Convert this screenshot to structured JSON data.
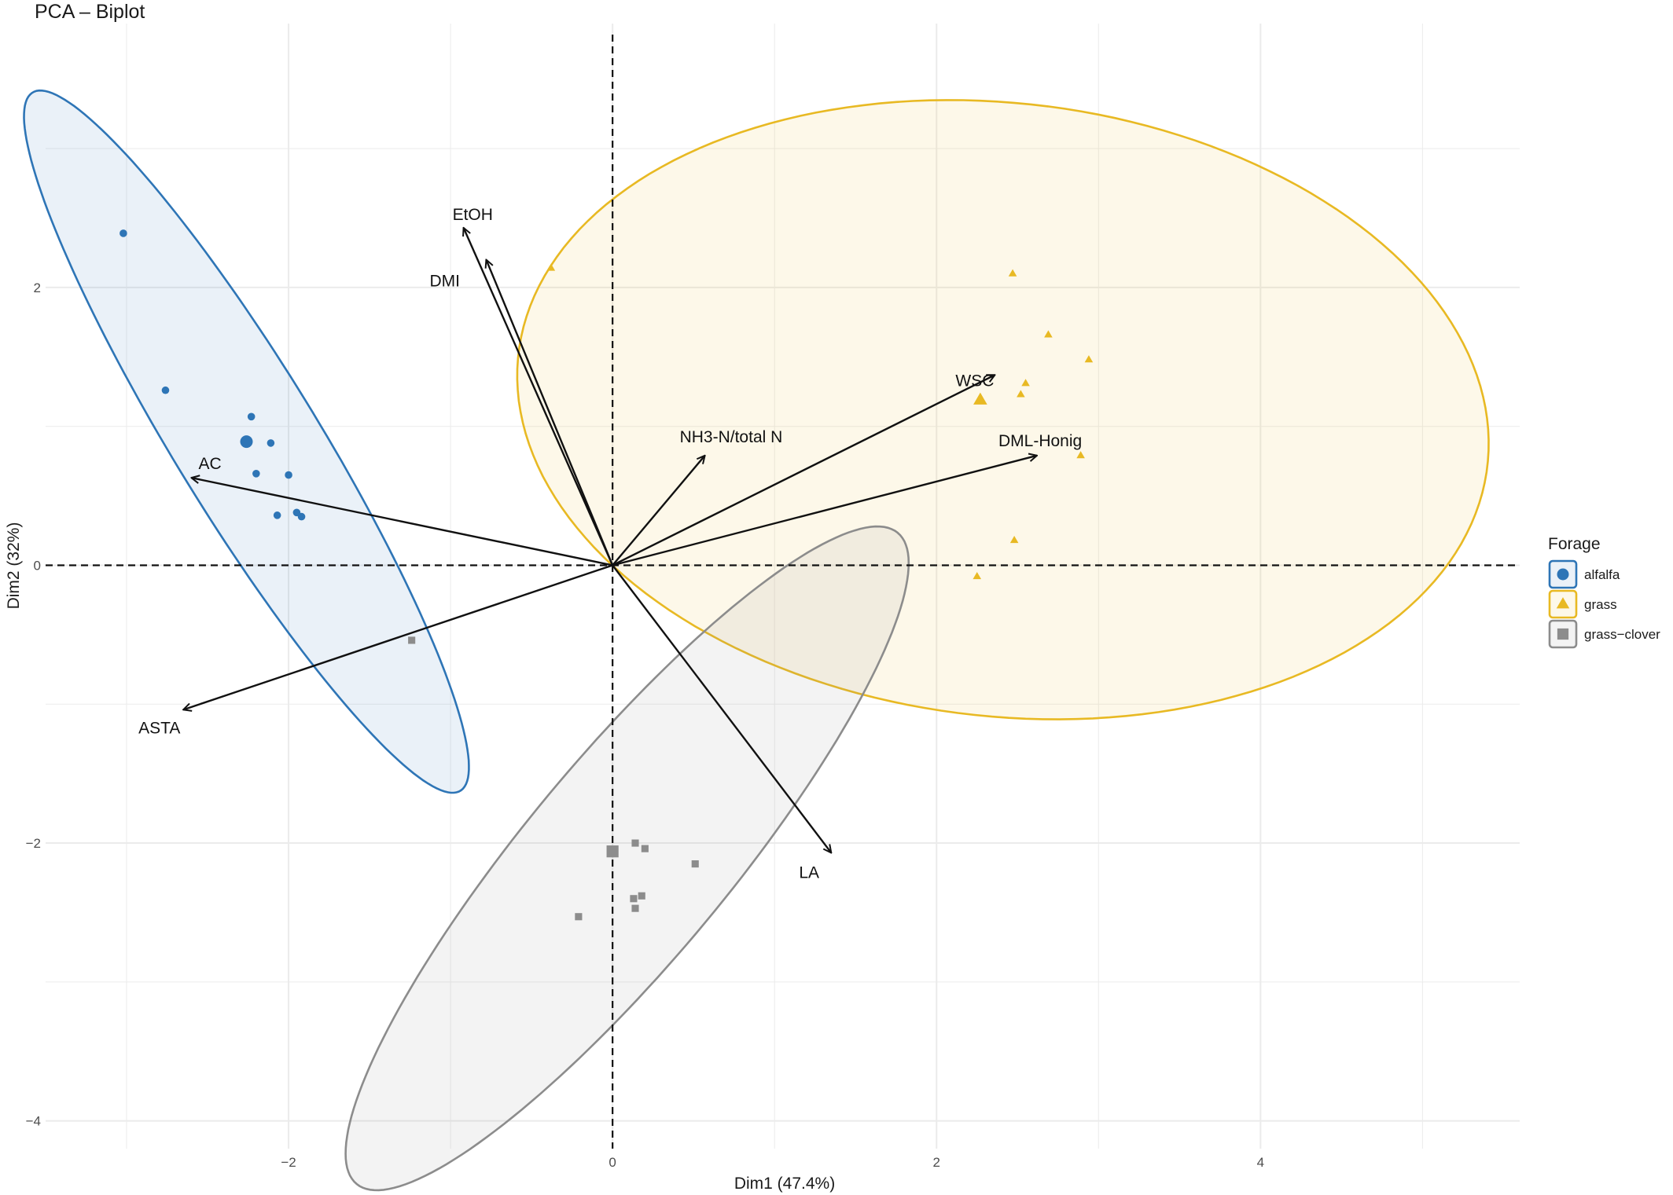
{
  "chart_data": {
    "type": "scatter",
    "title": "PCA – Biplot",
    "xlabel": "Dim1 (47.4%)",
    "ylabel": "Dim2 (32%)",
    "xlim": [
      -3.5,
      5.6
    ],
    "ylim": [
      -4.2,
      3.9
    ],
    "x_ticks": [
      -2,
      0,
      2,
      4
    ],
    "y_ticks": [
      -4,
      -2,
      0,
      2
    ],
    "x_tick_labels": [
      "−2",
      "0",
      "2",
      "4"
    ],
    "y_tick_labels": [
      "−4",
      "−2",
      "0",
      "2"
    ],
    "grid": true,
    "reference_lines": {
      "x": 0,
      "y": 0,
      "style": "dashed"
    },
    "legend": {
      "title": "Forage",
      "placement": "right",
      "entries": [
        "alfalfa",
        "grass",
        "grass−clover"
      ]
    },
    "series": [
      {
        "name": "alfalfa",
        "color": "#2E75B6",
        "shape": "circle",
        "points": [
          [
            -3.02,
            2.39
          ],
          [
            -2.76,
            1.26
          ],
          [
            -2.23,
            1.07
          ],
          [
            -2.11,
            0.88
          ],
          [
            -2.2,
            0.66
          ],
          [
            -2.0,
            0.65
          ],
          [
            -1.95,
            0.38
          ],
          [
            -1.92,
            0.35
          ],
          [
            -2.07,
            0.36
          ]
        ],
        "centroid": [
          -2.26,
          0.89
        ],
        "ellipse": {
          "center": [
            -2.26,
            0.89
          ],
          "rx": 2.84,
          "ry": 0.46,
          "angle_deg": -62.5
        }
      },
      {
        "name": "grass",
        "color": "#E8B923",
        "shape": "triangle",
        "points": [
          [
            -0.38,
            2.14
          ],
          [
            2.47,
            2.1
          ],
          [
            2.69,
            1.66
          ],
          [
            2.94,
            1.48
          ],
          [
            2.55,
            1.31
          ],
          [
            2.52,
            1.23
          ],
          [
            2.89,
            0.79
          ],
          [
            2.48,
            0.18
          ],
          [
            2.25,
            -0.08
          ]
        ],
        "centroid": [
          2.27,
          1.19
        ],
        "ellipse": {
          "center": [
            2.41,
            1.12
          ],
          "rx": 3.02,
          "ry": 2.2,
          "angle_deg": -10
        }
      },
      {
        "name": "grass−clover",
        "color": "#8C8C8C",
        "shape": "square",
        "points": [
          [
            -1.24,
            -0.54
          ],
          [
            0.14,
            -2.0
          ],
          [
            0.2,
            -2.04
          ],
          [
            0.51,
            -2.15
          ],
          [
            0.13,
            -2.4
          ],
          [
            0.18,
            -2.38
          ],
          [
            0.14,
            -2.47
          ],
          [
            -0.21,
            -2.53
          ],
          [
            0.0,
            -2.07
          ]
        ],
        "centroid": [
          0.0,
          -2.06
        ],
        "ellipse": {
          "center": [
            0.09,
            -2.11
          ],
          "rx": 2.88,
          "ry": 0.66,
          "angle_deg": 55
        }
      }
    ],
    "variables": [
      {
        "name": "EtOH",
        "x": -0.92,
        "y": 2.43
      },
      {
        "name": "DMI",
        "x": -0.78,
        "y": 2.2
      },
      {
        "name": "NH3-N/total N",
        "x": 0.57,
        "y": 0.79
      },
      {
        "name": "WSC",
        "x": 2.36,
        "y": 1.37
      },
      {
        "name": "DML-Honig",
        "x": 2.62,
        "y": 0.79
      },
      {
        "name": "AC",
        "x": -2.6,
        "y": 0.63
      },
      {
        "name": "ASTA",
        "x": -2.65,
        "y": -1.04
      },
      {
        "name": "LA",
        "x": 1.35,
        "y": -2.07
      }
    ]
  }
}
